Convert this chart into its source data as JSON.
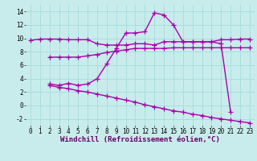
{
  "background_color": "#c8ecec",
  "grid_color": "#aadddd",
  "line_color": "#aa00aa",
  "marker": "+",
  "markersize": 4,
  "linewidth": 1.0,
  "xlabel": "Windchill (Refroidissement éolien,°C)",
  "xlabel_fontsize": 6.5,
  "tick_fontsize": 5.5,
  "xlim": [
    -0.5,
    23.5
  ],
  "ylim": [
    -3,
    15
  ],
  "yticks": [
    -2,
    0,
    2,
    4,
    6,
    8,
    10,
    12,
    14
  ],
  "xticks": [
    0,
    1,
    2,
    3,
    4,
    5,
    6,
    7,
    8,
    9,
    10,
    11,
    12,
    13,
    14,
    15,
    16,
    17,
    18,
    19,
    20,
    21,
    22,
    23
  ],
  "series": [
    {
      "x": [
        0,
        1,
        2,
        3,
        4,
        5,
        6,
        7,
        8,
        9,
        10,
        11,
        12,
        13,
        14,
        15,
        16,
        17,
        18,
        19,
        20,
        21,
        22,
        23
      ],
      "y": [
        9.7,
        9.9,
        9.9,
        9.9,
        9.8,
        9.8,
        9.8,
        9.2,
        9.0,
        9.0,
        9.0,
        9.2,
        9.2,
        9.0,
        9.5,
        9.5,
        9.5,
        9.5,
        9.5,
        9.5,
        9.8,
        9.8,
        9.9,
        9.9
      ]
    },
    {
      "x": [
        2,
        3,
        4,
        5,
        6,
        7,
        8,
        9,
        10,
        11,
        12,
        13,
        14,
        15,
        16,
        17,
        18,
        19,
        20,
        21,
        22,
        23
      ],
      "y": [
        7.2,
        7.2,
        7.2,
        7.2,
        7.4,
        7.6,
        7.9,
        8.1,
        8.3,
        8.5,
        8.5,
        8.5,
        8.5,
        8.6,
        8.6,
        8.6,
        8.6,
        8.6,
        8.6,
        8.6,
        8.6,
        8.6
      ]
    },
    {
      "x": [
        2,
        3,
        4,
        5,
        6,
        7,
        8,
        9,
        10,
        11,
        12,
        13,
        14,
        15,
        16,
        17,
        18,
        19,
        20,
        21
      ],
      "y": [
        3.2,
        3.0,
        3.3,
        3.0,
        3.2,
        4.0,
        6.2,
        8.5,
        10.8,
        10.8,
        11.0,
        13.8,
        13.5,
        12.0,
        9.5,
        9.5,
        9.5,
        9.5,
        9.2,
        -1.0
      ]
    },
    {
      "x": [
        2,
        3,
        4,
        5,
        6,
        7,
        8,
        9,
        10,
        11,
        12,
        13,
        14,
        15,
        16,
        17,
        18,
        19,
        20,
        21,
        22,
        23
      ],
      "y": [
        3.0,
        2.7,
        2.5,
        2.2,
        2.0,
        1.7,
        1.4,
        1.1,
        0.8,
        0.5,
        0.1,
        -0.2,
        -0.5,
        -0.8,
        -1.0,
        -1.3,
        -1.5,
        -1.8,
        -2.0,
        -2.2,
        -2.4,
        -2.6
      ]
    }
  ]
}
